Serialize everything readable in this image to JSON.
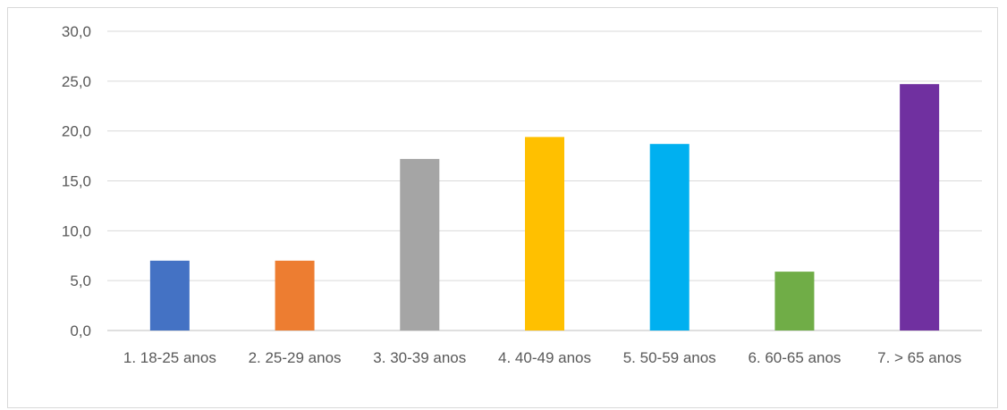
{
  "chart_data": {
    "type": "bar",
    "title": "",
    "xlabel": "",
    "ylabel": "",
    "categories": [
      "1. 18-25 anos",
      "2. 25-29 anos",
      "3. 30-39 anos",
      "4. 40-49 anos",
      "5. 50-59 anos",
      "6. 60-65 anos",
      "7. > 65 anos"
    ],
    "values": [
      7.0,
      7.0,
      17.2,
      19.4,
      18.7,
      5.9,
      24.7
    ],
    "colors": [
      "#4472c4",
      "#ed7d31",
      "#a5a5a5",
      "#ffc000",
      "#00b0f0",
      "#70ad47",
      "#7030a0"
    ],
    "ylim": [
      0,
      30
    ],
    "yticks": [
      "0,0",
      "5,0",
      "10,0",
      "15,0",
      "20,0",
      "25,0",
      "30,0"
    ],
    "ytick_values": [
      0,
      5,
      10,
      15,
      20,
      25,
      30
    ],
    "grid": true,
    "legend": "none"
  }
}
